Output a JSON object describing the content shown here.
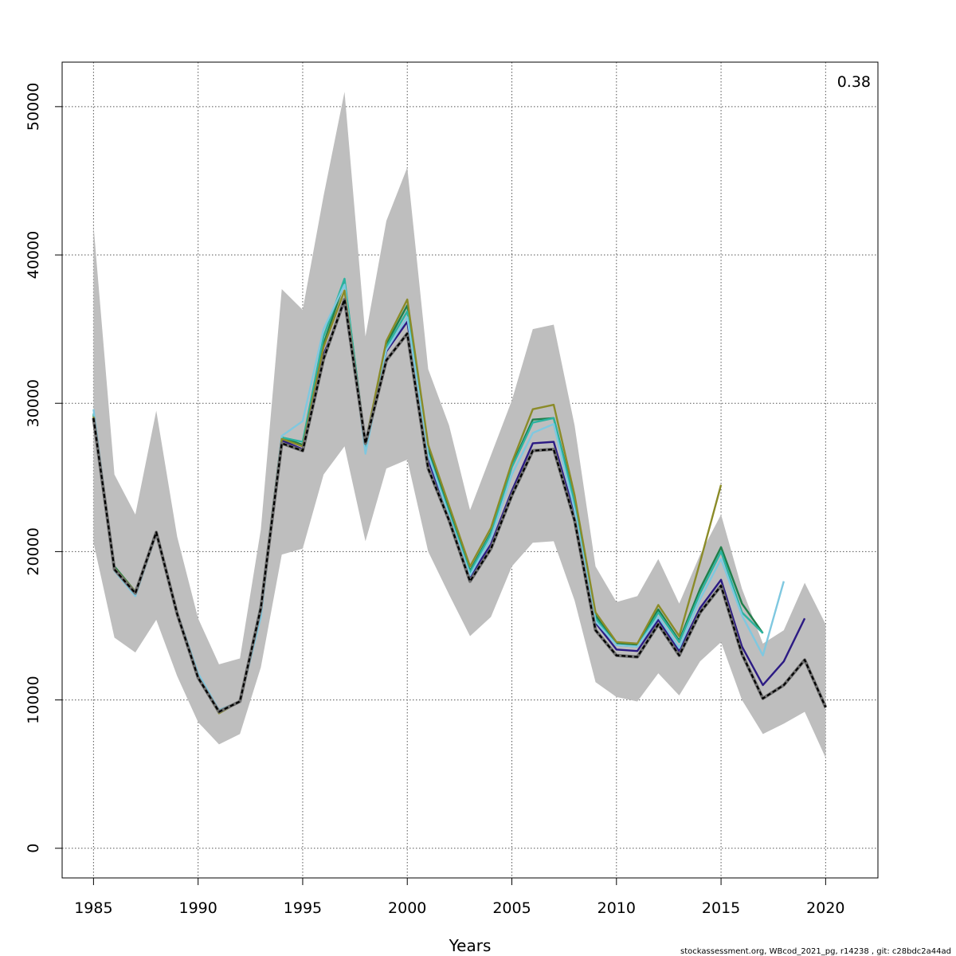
{
  "chart_data": {
    "type": "line",
    "xlabel": "Years",
    "ylabel": "",
    "annotation": "0.38",
    "footer": "stockassessment.org, WBcod_2021_pg, r14238 , git: c28bdc2a44ad",
    "xlim": [
      1983.5,
      2022.5
    ],
    "ylim": [
      -2000,
      53000
    ],
    "xticks": [
      1985,
      1990,
      1995,
      2000,
      2005,
      2010,
      2015,
      2020
    ],
    "yticks": [
      0,
      10000,
      20000,
      30000,
      40000,
      50000
    ],
    "grid": true,
    "band": {
      "color": "#bebebe",
      "x": [
        1985,
        1986,
        1987,
        1988,
        1989,
        1990,
        1991,
        1992,
        1993,
        1994,
        1995,
        1996,
        1997,
        1998,
        1999,
        2000,
        2001,
        2002,
        2003,
        2004,
        2005,
        2006,
        2007,
        2008,
        2009,
        2010,
        2011,
        2012,
        2013,
        2014,
        2015,
        2016,
        2017,
        2018,
        2019,
        2020
      ],
      "upper": [
        42000,
        25200,
        22500,
        29500,
        21000,
        15500,
        12400,
        12800,
        21500,
        37700,
        36300,
        44000,
        51000,
        34500,
        42300,
        45900,
        32300,
        28500,
        22800,
        26500,
        30200,
        35000,
        35300,
        28500,
        19000,
        16600,
        17000,
        19500,
        16500,
        19800,
        22500,
        17500,
        13800,
        14700,
        17900,
        15100
      ],
      "lower": [
        20600,
        14200,
        13200,
        15400,
        11600,
        8500,
        7000,
        7700,
        12200,
        19800,
        20200,
        25200,
        27100,
        20700,
        25600,
        26200,
        20000,
        17100,
        14300,
        15600,
        19000,
        20600,
        20700,
        16700,
        11200,
        10200,
        9900,
        11800,
        10300,
        12600,
        13900,
        10000,
        7700,
        8400,
        9200,
        6100
      ]
    },
    "series": [
      {
        "color": "#000000",
        "dashed": true,
        "x": [
          1985,
          1986,
          1987,
          1988,
          1989,
          1990,
          1991,
          1992,
          1993,
          1994,
          1995,
          1996,
          1997,
          1998,
          1999,
          2000,
          2001,
          2002,
          2003,
          2004,
          2005,
          2006,
          2007,
          2008,
          2009,
          2010,
          2011,
          2012,
          2013,
          2014,
          2015,
          2016,
          2017,
          2018,
          2019,
          2020
        ],
        "values": [
          29000,
          18800,
          17200,
          21300,
          15800,
          11500,
          9200,
          9900,
          16200,
          27300,
          26800,
          33000,
          37000,
          27300,
          32900,
          34700,
          25600,
          22100,
          18000,
          20200,
          23800,
          26800,
          26900,
          22100,
          14700,
          13000,
          12900,
          15100,
          13000,
          15900,
          17700,
          13100,
          10100,
          11000,
          12700,
          9500
        ]
      },
      {
        "color": "#2c1b84",
        "dashed": false,
        "x": [
          1985,
          1986,
          1987,
          1988,
          1989,
          1990,
          1991,
          1992,
          1993,
          1994,
          1995,
          1996,
          1997,
          1998,
          1999,
          2000,
          2001,
          2002,
          2003,
          2004,
          2005,
          2006,
          2007,
          2008,
          2009,
          2010,
          2011,
          2012,
          2013,
          2014,
          2015,
          2016,
          2017,
          2018,
          2019
        ],
        "values": [
          29100,
          18900,
          17300,
          21300,
          15800,
          11600,
          9300,
          9900,
          16300,
          27500,
          26900,
          33300,
          36800,
          27200,
          33500,
          35500,
          26200,
          22300,
          18300,
          20500,
          24100,
          27300,
          27400,
          22500,
          15200,
          13400,
          13300,
          15400,
          13300,
          16200,
          18100,
          13600,
          11000,
          12600,
          15500
        ]
      },
      {
        "color": "#1f7f4a",
        "dashed": false,
        "x": [
          1985,
          1986,
          1987,
          1988,
          1989,
          1990,
          1991,
          1992,
          1993,
          1994,
          1995,
          1996,
          1997,
          1998,
          1999,
          2000,
          2001,
          2002,
          2003,
          2004,
          2005,
          2006,
          2007,
          2008,
          2009,
          2010,
          2011,
          2012,
          2013,
          2014,
          2015,
          2016,
          2017
        ],
        "values": [
          29200,
          19000,
          17300,
          21300,
          15800,
          11600,
          9300,
          9900,
          16400,
          27700,
          27200,
          34000,
          38200,
          27300,
          34000,
          36600,
          26900,
          22800,
          18700,
          21300,
          25800,
          28900,
          29000,
          23500,
          15700,
          13800,
          13700,
          16100,
          14000,
          17500,
          20300,
          16500,
          14500
        ]
      },
      {
        "color": "#2bb3a0",
        "dashed": false,
        "x": [
          1985,
          1986,
          1987,
          1988,
          1989,
          1990,
          1991,
          1992,
          1993,
          1994,
          1995,
          1996,
          1997,
          1998,
          1999,
          2000,
          2001,
          2002,
          2003,
          2004,
          2005,
          2006,
          2007,
          2008,
          2009,
          2010,
          2011,
          2012,
          2013,
          2014,
          2015,
          2016,
          2017
        ],
        "values": [
          29300,
          18800,
          17200,
          21200,
          15800,
          11700,
          9200,
          9900,
          16300,
          27700,
          27400,
          34500,
          38400,
          27100,
          33800,
          36200,
          26600,
          22600,
          18600,
          21200,
          25700,
          28700,
          29000,
          23300,
          15500,
          13700,
          13600,
          15900,
          13900,
          17200,
          20000,
          15900,
          14500
        ]
      },
      {
        "color": "#7fc8e0",
        "dashed": false,
        "x": [
          1985,
          1986,
          1987,
          1988,
          1989,
          1990,
          1991,
          1992,
          1993,
          1994,
          1995,
          1996,
          1997,
          1998,
          1999,
          2000,
          2001,
          2002,
          2003,
          2004,
          2005,
          2006,
          2007,
          2008,
          2009,
          2010,
          2011,
          2012,
          2013,
          2014,
          2015,
          2016,
          2017,
          2018
        ],
        "values": [
          29600,
          18700,
          17000,
          21200,
          15900,
          11800,
          9300,
          9900,
          15600,
          27800,
          28800,
          35000,
          38000,
          26600,
          33600,
          35800,
          26500,
          22400,
          18400,
          20900,
          25200,
          28000,
          28600,
          22800,
          15300,
          13700,
          13600,
          15600,
          13500,
          16800,
          19500,
          15700,
          13000,
          18000
        ]
      },
      {
        "color": "#8b8b28",
        "dashed": false,
        "x": [
          1985,
          1986,
          1987,
          1988,
          1989,
          1990,
          1991,
          1992,
          1993,
          1994,
          1995,
          1996,
          1997,
          1998,
          1999,
          2000,
          2001,
          2002,
          2003,
          2004,
          2005,
          2006,
          2007,
          2008,
          2009,
          2010,
          2011,
          2012,
          2013,
          2014,
          2015
        ],
        "values": [
          29100,
          18900,
          17300,
          21300,
          15800,
          11500,
          9100,
          9900,
          16300,
          27600,
          27100,
          33800,
          37600,
          27300,
          34200,
          37000,
          27200,
          23100,
          19000,
          21600,
          26000,
          29600,
          29900,
          23800,
          15900,
          13900,
          13800,
          16400,
          14300,
          19300,
          24500
        ]
      }
    ]
  }
}
